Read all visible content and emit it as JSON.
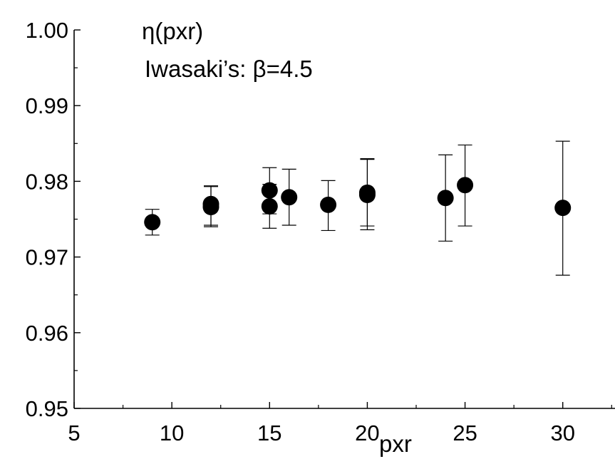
{
  "chart_data": {
    "type": "scatter",
    "annotations": [
      "η(pxr)",
      "Iwasaki’s: β=4.5"
    ],
    "xlabel": "pxr",
    "ylabel": "",
    "xlim": [
      5,
      33
    ],
    "ylim": [
      0.95,
      1.0
    ],
    "xticks": [
      5,
      10,
      15,
      20,
      25,
      30
    ],
    "yticks": [
      0.95,
      0.96,
      0.97,
      0.98,
      0.99,
      1.0
    ],
    "xtick_labels": [
      "5",
      "10",
      "15",
      "20",
      "25",
      "30"
    ],
    "ytick_labels": [
      "0.95",
      "0.96",
      "0.97",
      "0.98",
      "0.99",
      "1.00"
    ],
    "grid": false,
    "marker_color": "#000000",
    "points": [
      {
        "x": 9,
        "y": 0.9746,
        "lo": 0.9729,
        "hi": 0.9763
      },
      {
        "x": 12,
        "y": 0.9766,
        "lo": 0.974,
        "hi": 0.9793
      },
      {
        "x": 12,
        "y": 0.977,
        "lo": 0.9742,
        "hi": 0.9794
      },
      {
        "x": 15,
        "y": 0.9788,
        "lo": 0.9757,
        "hi": 0.9818
      },
      {
        "x": 15,
        "y": 0.9767,
        "lo": 0.9738,
        "hi": 0.9796
      },
      {
        "x": 16,
        "y": 0.9779,
        "lo": 0.9742,
        "hi": 0.9816
      },
      {
        "x": 18,
        "y": 0.9769,
        "lo": 0.9735,
        "hi": 0.9801
      },
      {
        "x": 20,
        "y": 0.9782,
        "lo": 0.9736,
        "hi": 0.9829
      },
      {
        "x": 20,
        "y": 0.9785,
        "lo": 0.9741,
        "hi": 0.983
      },
      {
        "x": 24,
        "y": 0.9778,
        "lo": 0.9721,
        "hi": 0.9835
      },
      {
        "x": 25,
        "y": 0.9795,
        "lo": 0.9741,
        "hi": 0.9848
      },
      {
        "x": 30,
        "y": 0.9765,
        "lo": 0.9676,
        "hi": 0.9853
      }
    ]
  }
}
